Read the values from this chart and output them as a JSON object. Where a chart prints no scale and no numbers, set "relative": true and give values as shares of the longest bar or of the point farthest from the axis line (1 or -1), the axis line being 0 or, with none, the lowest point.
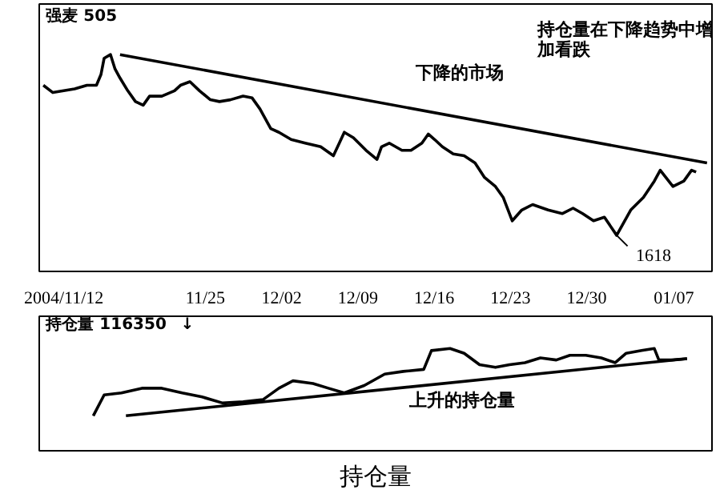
{
  "chart_data": [
    {
      "type": "line",
      "title": "强麦 505",
      "relative": true,
      "xlim": [
        "2004-11-09T18:00",
        "2005-01-10T12:00"
      ],
      "xticks": [
        {
          "value": "2004-11-12",
          "label": "2004/11/12"
        },
        {
          "value": "2004-11-25",
          "label": "11/25"
        },
        {
          "value": "2004-12-02",
          "label": "12/02"
        },
        {
          "value": "2004-12-09",
          "label": "12/09"
        },
        {
          "value": "2004-12-16",
          "label": "12/16"
        },
        {
          "value": "2004-12-23",
          "label": "12/23"
        },
        {
          "value": "2004-12-30",
          "label": "12/30"
        },
        {
          "value": "2005-01-07",
          "label": "01/07"
        }
      ],
      "tick_labels": "x",
      "series": [
        {
          "color": "#000000",
          "x": [
            "2004-11-10T03:00",
            "2004-11-11T00:00",
            "2004-11-12T00:00",
            "2004-11-13T00:00",
            "2004-11-14T03:00",
            "2004-11-15T00:00",
            "2004-11-15T10:00",
            "2004-11-15T17:00",
            "2004-11-16T07:00",
            "2004-11-16T17:00",
            "2004-11-17T04:00",
            "2004-11-17T21:00",
            "2004-11-18T14:00",
            "2004-11-19T07:00",
            "2004-11-19T21:00",
            "2004-11-21T00:00",
            "2004-11-22T04:00",
            "2004-11-22T17:00",
            "2004-11-23T14:00",
            "2004-11-24T11:00",
            "2004-11-25T11:00",
            "2004-11-26T07:00",
            "2004-11-27T07:00",
            "2004-11-28T11:00",
            "2004-11-29T07:00",
            "2004-11-30T00:00",
            "2004-12-01T00:00",
            "2004-12-01T18:00",
            "2004-12-02T21:00",
            "2004-12-04T04:00",
            "2004-12-05T14:00",
            "2004-12-06T18:00",
            "2004-12-07T07:00",
            "2004-12-07T18:00",
            "2004-12-08T14:00",
            "2004-12-09T18:00",
            "2004-12-10T18:00",
            "2004-12-11T04:00",
            "2004-12-11T21:00",
            "2004-12-13T01:00",
            "2004-12-13T21:00",
            "2004-12-14T21:00",
            "2004-12-15T11:00",
            "2004-12-16T01:00",
            "2004-12-16T18:00",
            "2004-12-17T18:00",
            "2004-12-18T18:00",
            "2004-12-19T18:00",
            "2004-12-20T15:00",
            "2004-12-21T15:00",
            "2004-12-22T08:00",
            "2004-12-23T04:00",
            "2004-12-24T01:00",
            "2004-12-25T01:00",
            "2004-12-26T11:00",
            "2004-12-27T18:00",
            "2004-12-28T18:00",
            "2004-12-29T15:00",
            "2004-12-30T15:00",
            "2004-12-31T15:00",
            "2005-01-01T18:00",
            "2005-01-03T01:00",
            "2005-01-04T05:00",
            "2005-01-05T05:00",
            "2005-01-05T18:00",
            "2005-01-06T22:00",
            "2005-01-07T22:00",
            "2005-01-08T15:00",
            "2005-01-09T01:00"
          ],
          "values": [
            0.83,
            0.79,
            0.8,
            0.81,
            0.83,
            0.83,
            0.89,
            0.98,
            1.0,
            0.92,
            0.87,
            0.8,
            0.74,
            0.72,
            0.77,
            0.77,
            0.8,
            0.83,
            0.85,
            0.8,
            0.75,
            0.74,
            0.75,
            0.77,
            0.76,
            0.7,
            0.59,
            0.57,
            0.53,
            0.51,
            0.49,
            0.44,
            0.51,
            0.57,
            0.54,
            0.47,
            0.42,
            0.49,
            0.51,
            0.47,
            0.47,
            0.51,
            0.56,
            0.53,
            0.49,
            0.45,
            0.44,
            0.4,
            0.32,
            0.27,
            0.21,
            0.08,
            0.14,
            0.17,
            0.14,
            0.12,
            0.15,
            0.12,
            0.08,
            0.1,
            0,
            0.14,
            0.21,
            0.3,
            0.36,
            0.27,
            0.3,
            0.36,
            0.35
          ]
        },
        {
          "type": "line",
          "color": "#000000",
          "x": [
            "2004-11-17T04:00",
            "2005-01-10T01:00"
          ],
          "values": [
            1.0,
            0.4
          ]
        }
      ],
      "annotations": [
        "下降的市场",
        "持仓量在下降趋势中增加看跌",
        {
          "text": "1618",
          "x": "2005-01-01T18:00",
          "y": 0
        }
      ]
    },
    {
      "type": "line",
      "title": "持仓量 116350",
      "relative": true,
      "xlim": [
        "2004-11-09T18:00",
        "2005-01-10T12:00"
      ],
      "tick_labels": false,
      "series": [
        {
          "color": "#000000",
          "x": [
            "2004-11-14T17:00",
            "2004-11-15T17:00",
            "2004-11-17T07:00",
            "2004-11-19T04:00",
            "2004-11-21T00:00",
            "2004-11-22T21:00",
            "2004-11-24T17:00",
            "2004-11-26T14:00",
            "2004-11-28T11:00",
            "2004-11-30T07:00",
            "2004-12-01T18:00",
            "2004-12-03T01:00",
            "2004-12-04T21:00",
            "2004-12-06T07:00",
            "2004-12-07T18:00",
            "2004-12-09T14:00",
            "2004-12-11T11:00",
            "2004-12-13T04:00",
            "2004-12-15T01:00",
            "2004-12-15T18:00",
            "2004-12-17T11:00",
            "2004-12-18T18:00",
            "2004-12-20T04:00",
            "2004-12-21T15:00",
            "2004-12-22T22:00",
            "2004-12-24T08:00",
            "2004-12-25T18:00",
            "2004-12-27T05:00",
            "2004-12-28T11:00",
            "2004-12-29T22:00",
            "2004-12-31T08:00",
            "2005-01-01T15:00",
            "2005-01-02T15:00",
            "2005-01-04T01:00",
            "2005-01-05T05:00",
            "2005-01-05T15:00",
            "2005-01-06T18:00",
            "2005-01-08T05:00"
          ],
          "values": [
            0,
            0.31,
            0.34,
            0.41,
            0.41,
            0.34,
            0.28,
            0.19,
            0.21,
            0.24,
            0.41,
            0.52,
            0.48,
            0.41,
            0.34,
            0.45,
            0.62,
            0.66,
            0.69,
            0.97,
            1.0,
            0.93,
            0.76,
            0.72,
            0.76,
            0.79,
            0.86,
            0.83,
            0.9,
            0.9,
            0.86,
            0.79,
            0.93,
            0.97,
            1.0,
            0.83,
            0.83,
            0.85
          ]
        },
        {
          "type": "line",
          "color": "#000000",
          "x": [
            "2004-11-17T17:00",
            "2005-01-08T05:00"
          ],
          "values": [
            0,
            0.85
          ]
        }
      ],
      "annotations": [
        "↓",
        "上升的持仓量",
        "持仓量"
      ]
    }
  ]
}
